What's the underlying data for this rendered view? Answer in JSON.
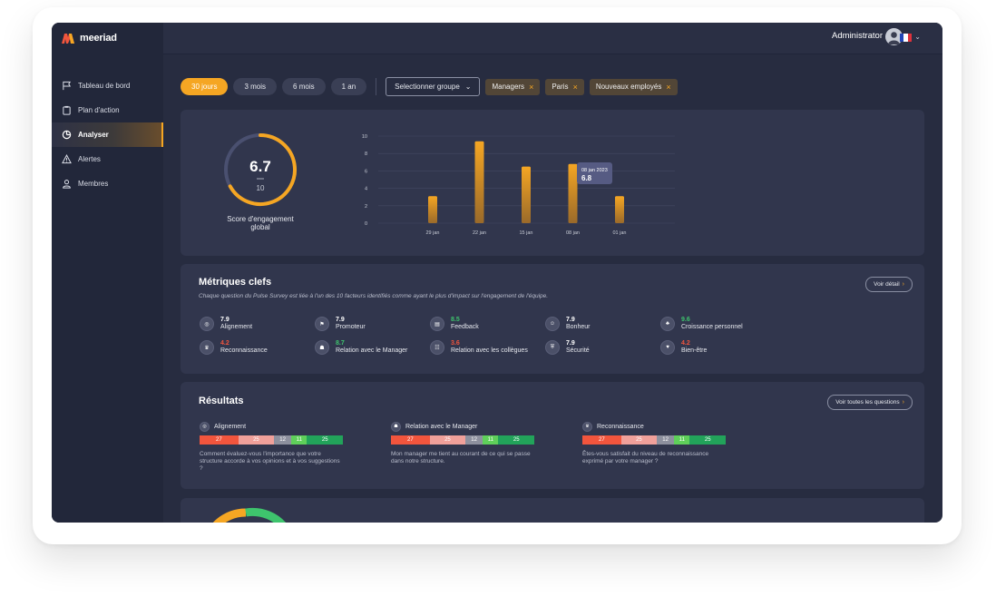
{
  "app": {
    "logo_text": "meeriad"
  },
  "sidebar": {
    "items": [
      {
        "label": "Tableau de bord",
        "icon": "flag-icon"
      },
      {
        "label": "Plan d'action",
        "icon": "clipboard-icon"
      },
      {
        "label": "Analyser",
        "icon": "pie-chart-icon",
        "active": true
      },
      {
        "label": "Alertes",
        "icon": "warning-icon"
      },
      {
        "label": "Membres",
        "icon": "user-icon"
      }
    ]
  },
  "header": {
    "user_label": "Administrator",
    "language": "FR"
  },
  "filters": {
    "periods": [
      "30 jours",
      "3 mois",
      "6 mois",
      "1 an"
    ],
    "active_period": "30 jours",
    "group_select": "Selectionner groupe",
    "tags": [
      "Managers",
      "Paris",
      "Nouveaux employés"
    ]
  },
  "engagement": {
    "score": "6.7",
    "max": "10",
    "score_fraction": 0.67,
    "label_line1": "Score d'engagement",
    "label_line2": "global",
    "tooltip_date": "08 jan 2023",
    "tooltip_value": "6.8"
  },
  "chart_data": {
    "type": "bar",
    "categories": [
      "29 jan",
      "22 jan",
      "15 jan",
      "08 jan",
      "01 jan"
    ],
    "values": [
      3.1,
      9.4,
      6.5,
      6.8,
      3.1
    ],
    "yticks": [
      0,
      2,
      4,
      6,
      8,
      10
    ],
    "ylim": [
      0,
      10
    ],
    "grid": true,
    "color": "#f5a623"
  },
  "metrics": {
    "title": "Métriques clefs",
    "subtitle": "Chaque question du Pulse Survey est liée à l'un des 10 facteurs identifiés comme ayant le plus d'impact sur l'engagement de l'équipe.",
    "detail_button": "Voir détail",
    "items": [
      {
        "value": "7.9",
        "name": "Alignement",
        "color": "#ffffff"
      },
      {
        "value": "7.9",
        "name": "Promoteur",
        "color": "#ffffff"
      },
      {
        "value": "8.5",
        "name": "Feedback",
        "color": "#3ec46d"
      },
      {
        "value": "7.9",
        "name": "Bonheur",
        "color": "#ffffff"
      },
      {
        "value": "9.6",
        "name": "Croissance personnel",
        "color": "#3ec46d"
      },
      {
        "value": "4.2",
        "name": "Reconnaissance",
        "color": "#f2553d"
      },
      {
        "value": "8.7",
        "name": "Relation avec le Manager",
        "color": "#3ec46d"
      },
      {
        "value": "3.6",
        "name": "Relation avec les collègues",
        "color": "#f2553d"
      },
      {
        "value": "7.9",
        "name": "Sécurité",
        "color": "#ffffff"
      },
      {
        "value": "4.2",
        "name": "Bien-être",
        "color": "#f2553d"
      }
    ]
  },
  "results": {
    "title": "Résultats",
    "all_button": "Voir toutes les questions",
    "items": [
      {
        "name": "Alignement",
        "segments": [
          "27",
          "25",
          "12",
          "11",
          "25"
        ],
        "question": "Comment évaluez-vous l'importance que votre structure accorde à vos opinions et à vos suggestions ?"
      },
      {
        "name": "Relation avec le Manager",
        "segments": [
          "27",
          "25",
          "12",
          "11",
          "25"
        ],
        "question": "Mon manager me tient au courant de ce qui se passe dans notre structure."
      },
      {
        "name": "Reconnaissance",
        "segments": [
          "27",
          "25",
          "12",
          "11",
          "25"
        ],
        "question": "Êtes-vous satisfait du niveau de reconnaissance exprimé par votre manager ?"
      }
    ],
    "segment_colors": [
      "#f2553d",
      "#f0a09a",
      "#8d909e",
      "#5fcf5a",
      "#22a35a"
    ]
  }
}
